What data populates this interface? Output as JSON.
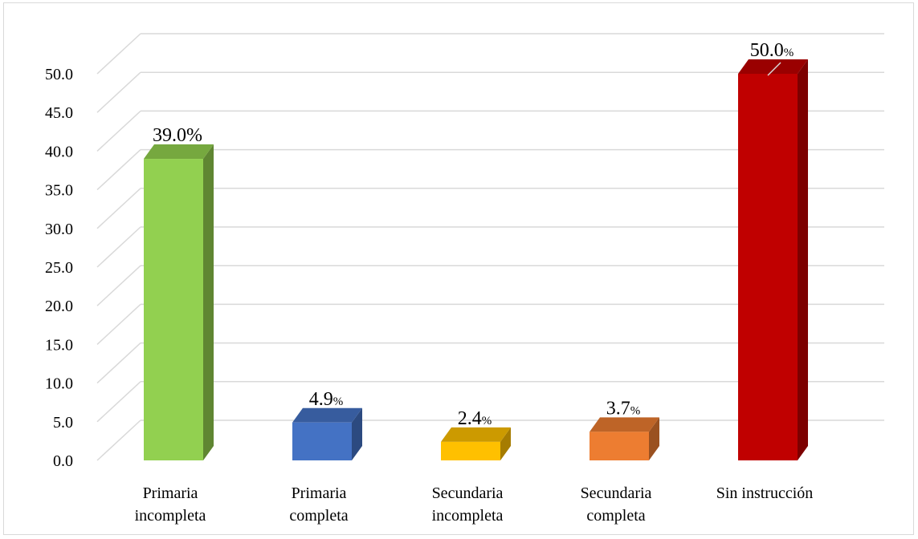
{
  "chart_data": {
    "type": "bar",
    "style": "3d-column",
    "title": "",
    "xlabel": "",
    "ylabel": "",
    "ylim": [
      0,
      50
    ],
    "y_tick_step": 5,
    "y_tick_labels": [
      "0.0",
      "5.0",
      "10.0",
      "15.0",
      "20.0",
      "25.0",
      "30.0",
      "35.0",
      "40.0",
      "45.0",
      "50.0"
    ],
    "grid": true,
    "legend": "none",
    "categories": [
      [
        "Primaria",
        "incompleta"
      ],
      [
        "Primaria",
        "completa"
      ],
      [
        "Secundaria",
        "incompleta"
      ],
      [
        "Secundaria",
        "completa"
      ],
      [
        "Sin instrucción"
      ]
    ],
    "values": [
      39.0,
      4.9,
      2.4,
      3.7,
      50.0
    ],
    "data_labels": [
      {
        "value": "39.0",
        "unit": "%"
      },
      {
        "value": "4.9",
        "unit": "%"
      },
      {
        "value": "2.4",
        "unit": "%"
      },
      {
        "value": "3.7",
        "unit": "%"
      },
      {
        "value": "50.0",
        "unit": "%"
      }
    ],
    "colors": [
      {
        "front": "#92d050",
        "side": "#5f8632",
        "top": "#76a83f"
      },
      {
        "front": "#4472c4",
        "side": "#2c4a80",
        "top": "#375c9e"
      },
      {
        "front": "#ffc000",
        "side": "#a67c00",
        "top": "#cc9a00"
      },
      {
        "front": "#ed7d31",
        "side": "#9a5120",
        "top": "#be6427"
      },
      {
        "front": "#c00000",
        "side": "#7d0000",
        "top": "#9a0000"
      }
    ],
    "gridline_color": "#d9d9d9"
  }
}
